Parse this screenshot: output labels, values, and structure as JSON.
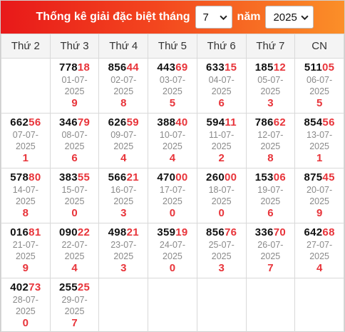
{
  "header": {
    "title": "Thống kê giải đặc biệt tháng",
    "month_value": "7",
    "year_label": "năm",
    "year_value": "2025"
  },
  "weekdays": [
    "Thứ 2",
    "Thứ 3",
    "Thứ 4",
    "Thứ 5",
    "Thứ 6",
    "Thứ 7",
    "CN"
  ],
  "weeks": [
    [
      null,
      {
        "prefix": "778",
        "suffix": "18",
        "date": "01-07-",
        "year": "2025",
        "tail": "9"
      },
      {
        "prefix": "856",
        "suffix": "44",
        "date": "02-07-",
        "year": "2025",
        "tail": "8"
      },
      {
        "prefix": "443",
        "suffix": "69",
        "date": "03-07-",
        "year": "2025",
        "tail": "5"
      },
      {
        "prefix": "633",
        "suffix": "15",
        "date": "04-07-",
        "year": "2025",
        "tail": "6"
      },
      {
        "prefix": "185",
        "suffix": "12",
        "date": "05-07-",
        "year": "2025",
        "tail": "3"
      },
      {
        "prefix": "511",
        "suffix": "05",
        "date": "06-07-",
        "year": "2025",
        "tail": "5"
      }
    ],
    [
      {
        "prefix": "662",
        "suffix": "56",
        "date": "07-07-",
        "year": "2025",
        "tail": "1"
      },
      {
        "prefix": "346",
        "suffix": "79",
        "date": "08-07-",
        "year": "2025",
        "tail": "6"
      },
      {
        "prefix": "626",
        "suffix": "59",
        "date": "09-07-",
        "year": "2025",
        "tail": "4"
      },
      {
        "prefix": "388",
        "suffix": "40",
        "date": "10-07-",
        "year": "2025",
        "tail": "4"
      },
      {
        "prefix": "594",
        "suffix": "11",
        "date": "11-07-",
        "year": "2025",
        "tail": "2"
      },
      {
        "prefix": "786",
        "suffix": "62",
        "date": "12-07-",
        "year": "2025",
        "tail": "8"
      },
      {
        "prefix": "854",
        "suffix": "56",
        "date": "13-07-",
        "year": "2025",
        "tail": "1"
      }
    ],
    [
      {
        "prefix": "578",
        "suffix": "80",
        "date": "14-07-",
        "year": "2025",
        "tail": "8"
      },
      {
        "prefix": "383",
        "suffix": "55",
        "date": "15-07-",
        "year": "2025",
        "tail": "0"
      },
      {
        "prefix": "566",
        "suffix": "21",
        "date": "16-07-",
        "year": "2025",
        "tail": "3"
      },
      {
        "prefix": "470",
        "suffix": "00",
        "date": "17-07-",
        "year": "2025",
        "tail": "0"
      },
      {
        "prefix": "260",
        "suffix": "00",
        "date": "18-07-",
        "year": "2025",
        "tail": "0"
      },
      {
        "prefix": "153",
        "suffix": "06",
        "date": "19-07-",
        "year": "2025",
        "tail": "6"
      },
      {
        "prefix": "875",
        "suffix": "45",
        "date": "20-07-",
        "year": "2025",
        "tail": "9"
      }
    ],
    [
      {
        "prefix": "016",
        "suffix": "81",
        "date": "21-07-",
        "year": "2025",
        "tail": "9"
      },
      {
        "prefix": "090",
        "suffix": "22",
        "date": "22-07-",
        "year": "2025",
        "tail": "4"
      },
      {
        "prefix": "498",
        "suffix": "21",
        "date": "23-07-",
        "year": "2025",
        "tail": "3"
      },
      {
        "prefix": "359",
        "suffix": "19",
        "date": "24-07-",
        "year": "2025",
        "tail": "0"
      },
      {
        "prefix": "856",
        "suffix": "76",
        "date": "25-07-",
        "year": "2025",
        "tail": "3"
      },
      {
        "prefix": "336",
        "suffix": "70",
        "date": "26-07-",
        "year": "2025",
        "tail": "7"
      },
      {
        "prefix": "642",
        "suffix": "68",
        "date": "27-07-",
        "year": "2025",
        "tail": "4"
      }
    ],
    [
      {
        "prefix": "402",
        "suffix": "73",
        "date": "28-07-",
        "year": "2025",
        "tail": "0"
      },
      {
        "prefix": "255",
        "suffix": "25",
        "date": "29-07-",
        "year": "2025",
        "tail": "7"
      },
      null,
      null,
      null,
      null,
      null
    ]
  ],
  "colors": {
    "accent_red": "#e8343a",
    "header_start": "#e8191a",
    "header_end": "#fb8f28"
  }
}
